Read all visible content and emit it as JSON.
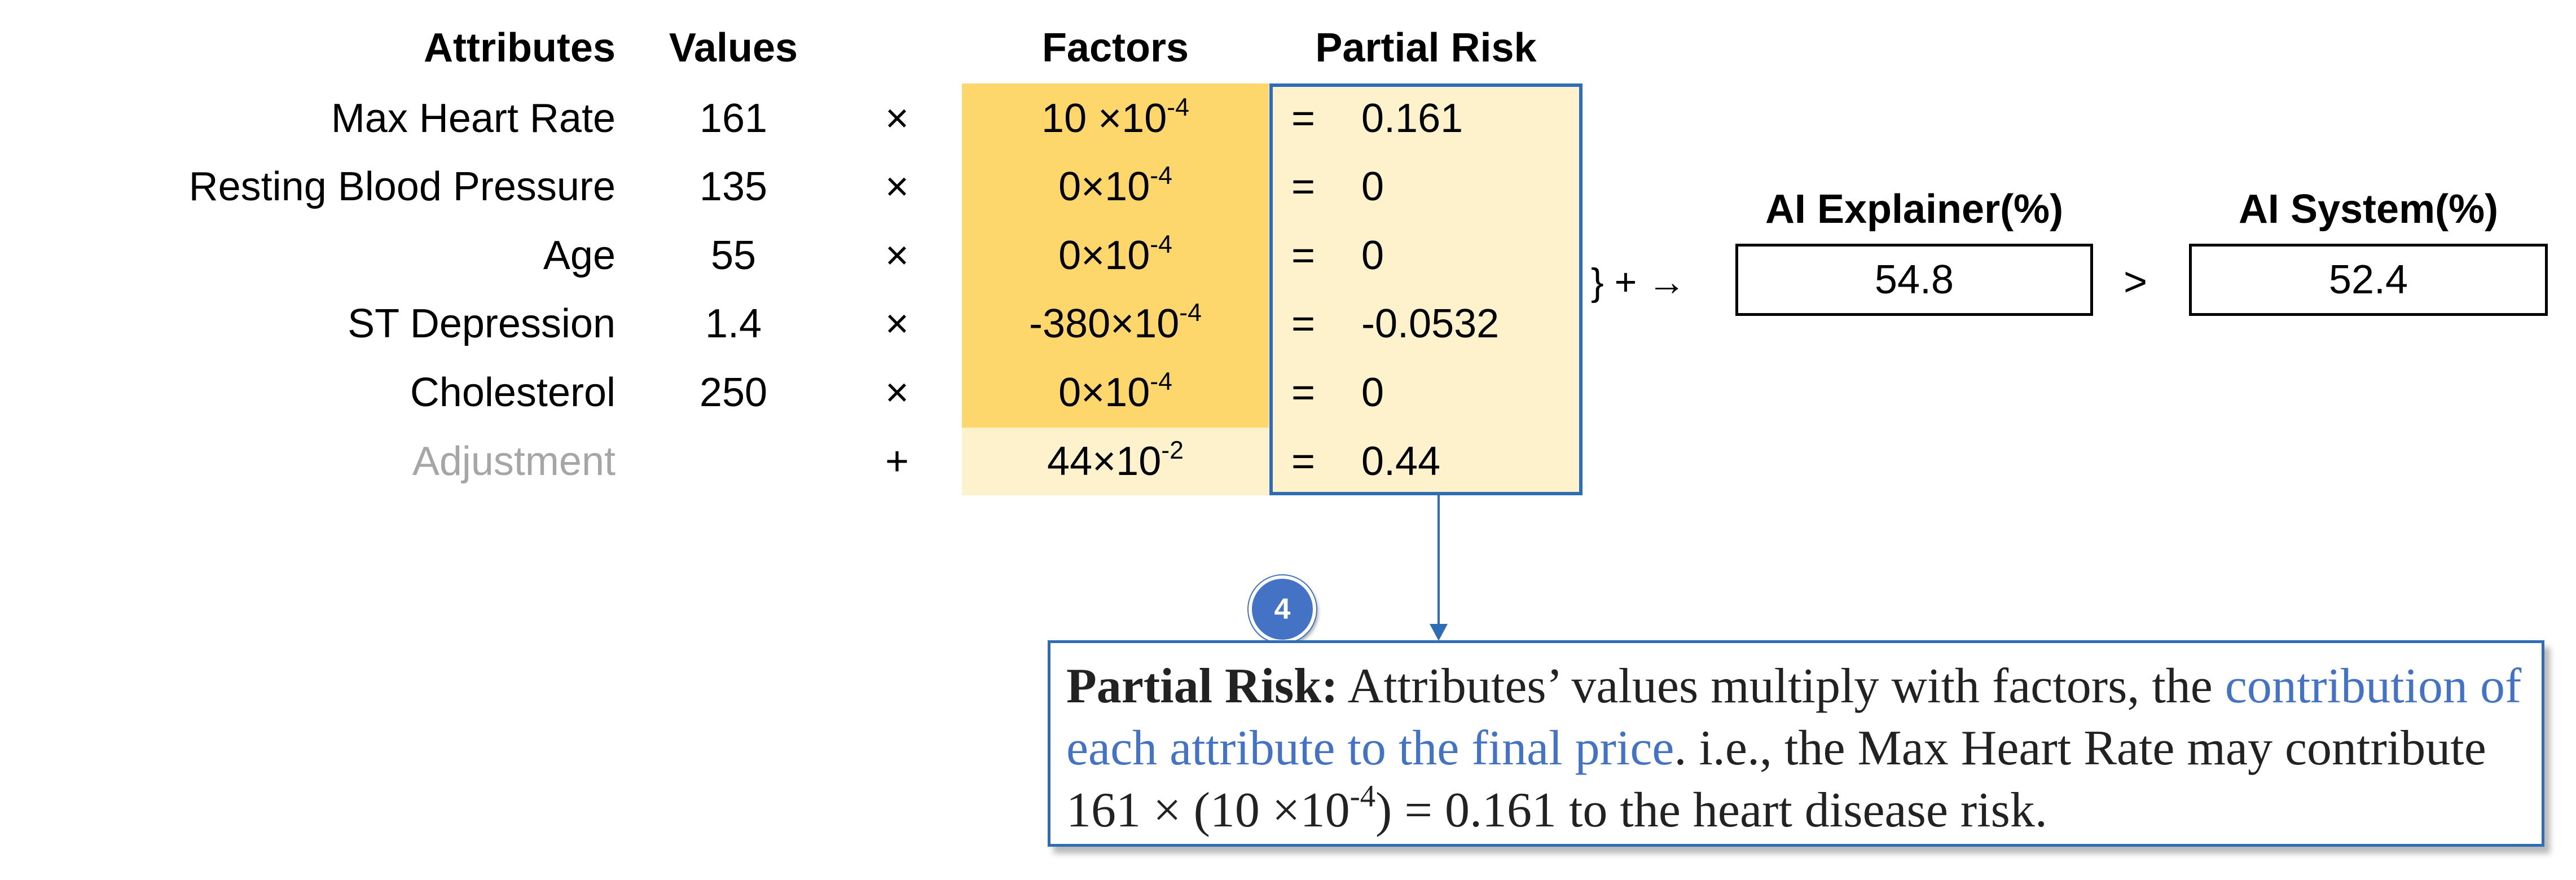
{
  "headers": {
    "attributes": "Attributes",
    "values": "Values",
    "factors": "Factors",
    "partial_risk": "Partial Risk"
  },
  "rows": [
    {
      "attribute": "Max Heart Rate",
      "value": "161",
      "op": "×",
      "factor_base": "10 ×10",
      "factor_exp": "-4",
      "eq": "=",
      "partial": "0.161"
    },
    {
      "attribute": "Resting Blood Pressure",
      "value": "135",
      "op": "×",
      "factor_base": "0×10",
      "factor_exp": "-4",
      "eq": "=",
      "partial": "0"
    },
    {
      "attribute": "Age",
      "value": "55",
      "op": "×",
      "factor_base": "0×10",
      "factor_exp": "-4",
      "eq": "=",
      "partial": "0"
    },
    {
      "attribute": "ST Depression",
      "value": "1.4",
      "op": "×",
      "factor_base": "-380×10",
      "factor_exp": "-4",
      "eq": "=",
      "partial": "-0.0532"
    },
    {
      "attribute": "Cholesterol",
      "value": "250",
      "op": "×",
      "factor_base": "0×10",
      "factor_exp": "-4",
      "eq": "=",
      "partial": "0"
    },
    {
      "attribute": "Adjustment",
      "value": "",
      "op": "+",
      "factor_base": "44×10",
      "factor_exp": "-2",
      "eq": "=",
      "partial": "0.44"
    }
  ],
  "sum_text": "} + →",
  "explainer": {
    "label": "AI Explainer(%)",
    "value": "54.8"
  },
  "comparison": ">",
  "system": {
    "label": "AI System(%)",
    "value": "52.4"
  },
  "step_badge": "4",
  "explanation": {
    "bold_term": "Partial Risk:",
    "text_1": " Attributes’ values multiply with factors, the",
    "highlight": "contribution of each attribute to the final price",
    "text_2": ". i.e., the Max Heart Rate may contribute 161 × (10 ×10",
    "exp": "-4",
    "text_3": ") = 0.161 to the heart disease risk."
  },
  "colors": {
    "factor_fill": "#fdd76b",
    "adjustment_fill": "#fef2cd",
    "partial_fill": "#fef2cd",
    "accent_blue": "#2e6db4",
    "badge_blue": "#4472c4",
    "muted_gray": "#a6a6a6"
  }
}
